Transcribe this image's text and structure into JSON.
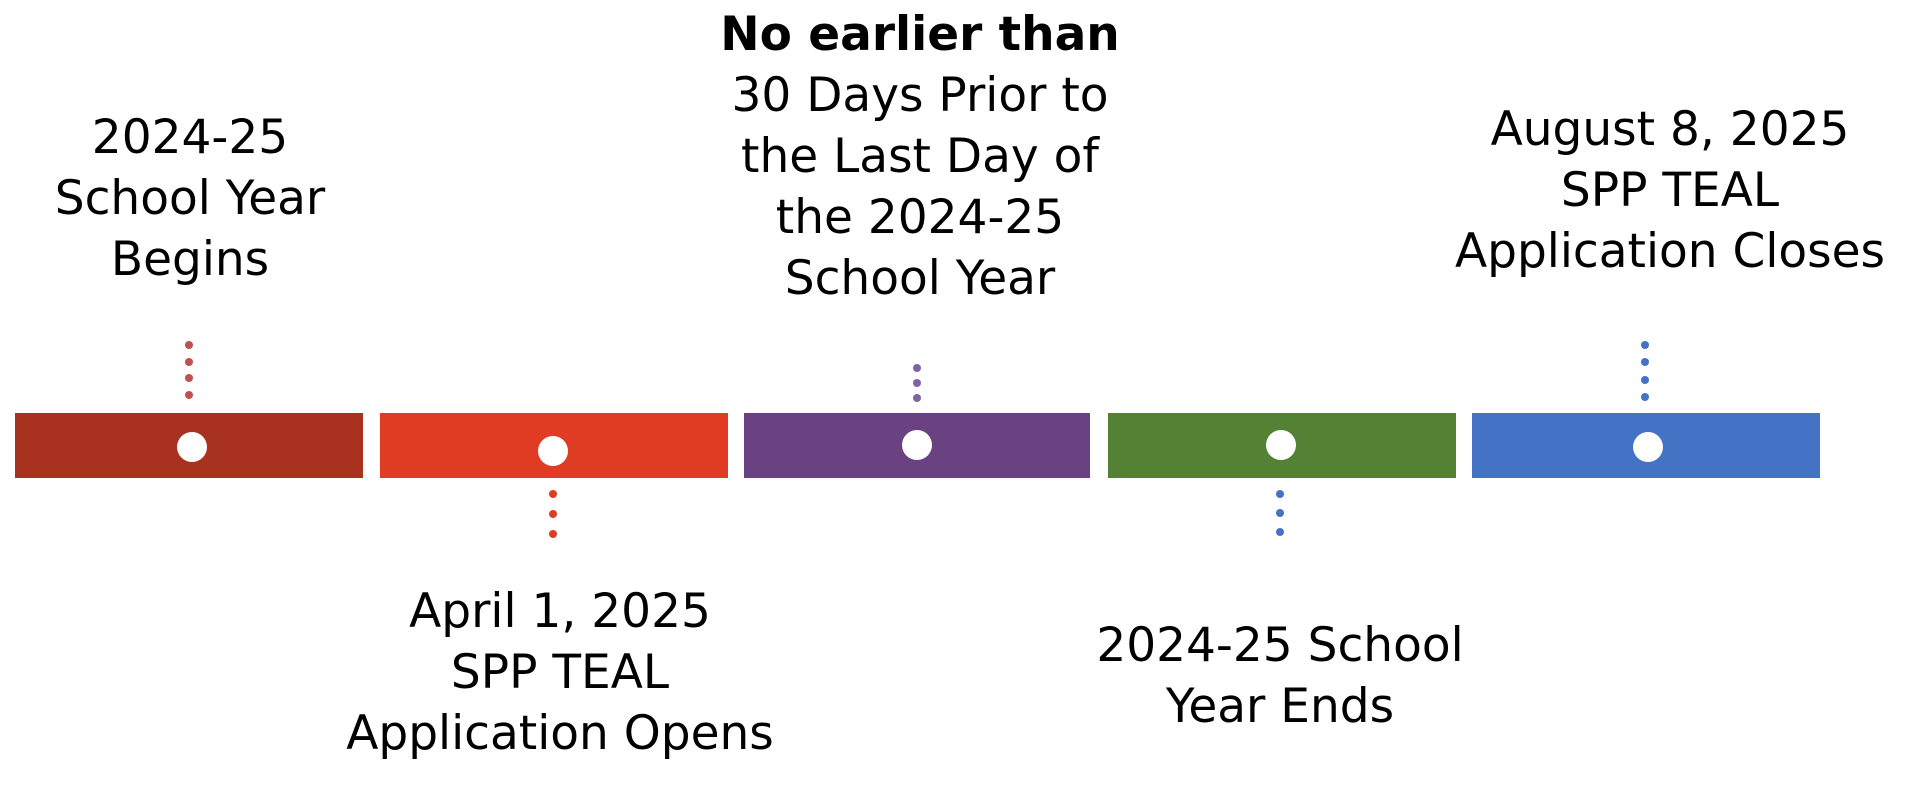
{
  "milestones": [
    {
      "lines": [
        "2024-25",
        "School Year",
        "Begins"
      ],
      "color": "#A8311F",
      "label_position": "above"
    },
    {
      "lines": [
        "April 1, 2025",
        "SPP TEAL",
        "Application Opens"
      ],
      "color": "#E03C23",
      "label_position": "below"
    },
    {
      "lines": [
        "No earlier than",
        "30 Days Prior to",
        "the Last Day of",
        "the 2024-25",
        "School Year"
      ],
      "color": "#6A4281",
      "label_position": "above",
      "bold_first_line": true
    },
    {
      "lines": [
        "2024-25 School",
        "Year Ends"
      ],
      "color": "#548235",
      "label_position": "below"
    },
    {
      "lines": [
        "August 8, 2025",
        "SPP TEAL",
        "Application Closes"
      ],
      "color": "#4472C4",
      "label_position": "above"
    }
  ],
  "connector_colors": [
    "#C0504D",
    "#E03C23",
    "#8064A2",
    "#4472C4",
    "#4472C4"
  ],
  "marker_color": "#FFFFFF"
}
